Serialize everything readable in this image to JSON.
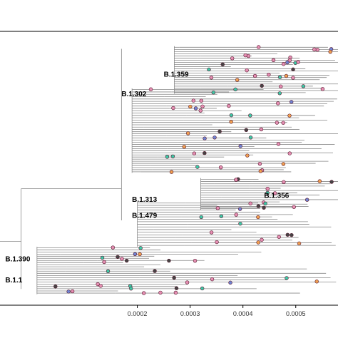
{
  "chart_data": {
    "type": "scatter",
    "description_type": "phylogenetic-tree",
    "xlim": [
      -6e-05,
      0.00058
    ],
    "grid": false,
    "x_ticks": [
      {
        "value": 0.0002,
        "label": "0.0002"
      },
      {
        "value": 0.0003,
        "label": "0.0003"
      },
      {
        "value": 0.0004,
        "label": "0.0004"
      },
      {
        "value": 0.0005,
        "label": "0.0005"
      }
    ],
    "clades": [
      {
        "label": "B.1.359",
        "x": 0.00025,
        "row": 0.155
      },
      {
        "label": "B.1.302",
        "x": 0.00017,
        "row": 0.23
      },
      {
        "label": "B.1.313",
        "x": 0.00019,
        "row": 0.63
      },
      {
        "label": "B.1.356",
        "x": 0.00044,
        "row": 0.615
      },
      {
        "label": "B.1.479",
        "x": 0.00019,
        "row": 0.69
      },
      {
        "label": "B.1.390",
        "x": -5e-05,
        "row": 0.855
      },
      {
        "label": "B.1.1",
        "x": -5e-05,
        "row": 0.935
      }
    ],
    "tip_colors": {
      "pink": "#e58fb3",
      "teal": "#3ec9a7",
      "blue": "#6f83d1",
      "orange": "#f0a050",
      "dark": "#444444",
      "edge": "#5a1a30"
    }
  }
}
